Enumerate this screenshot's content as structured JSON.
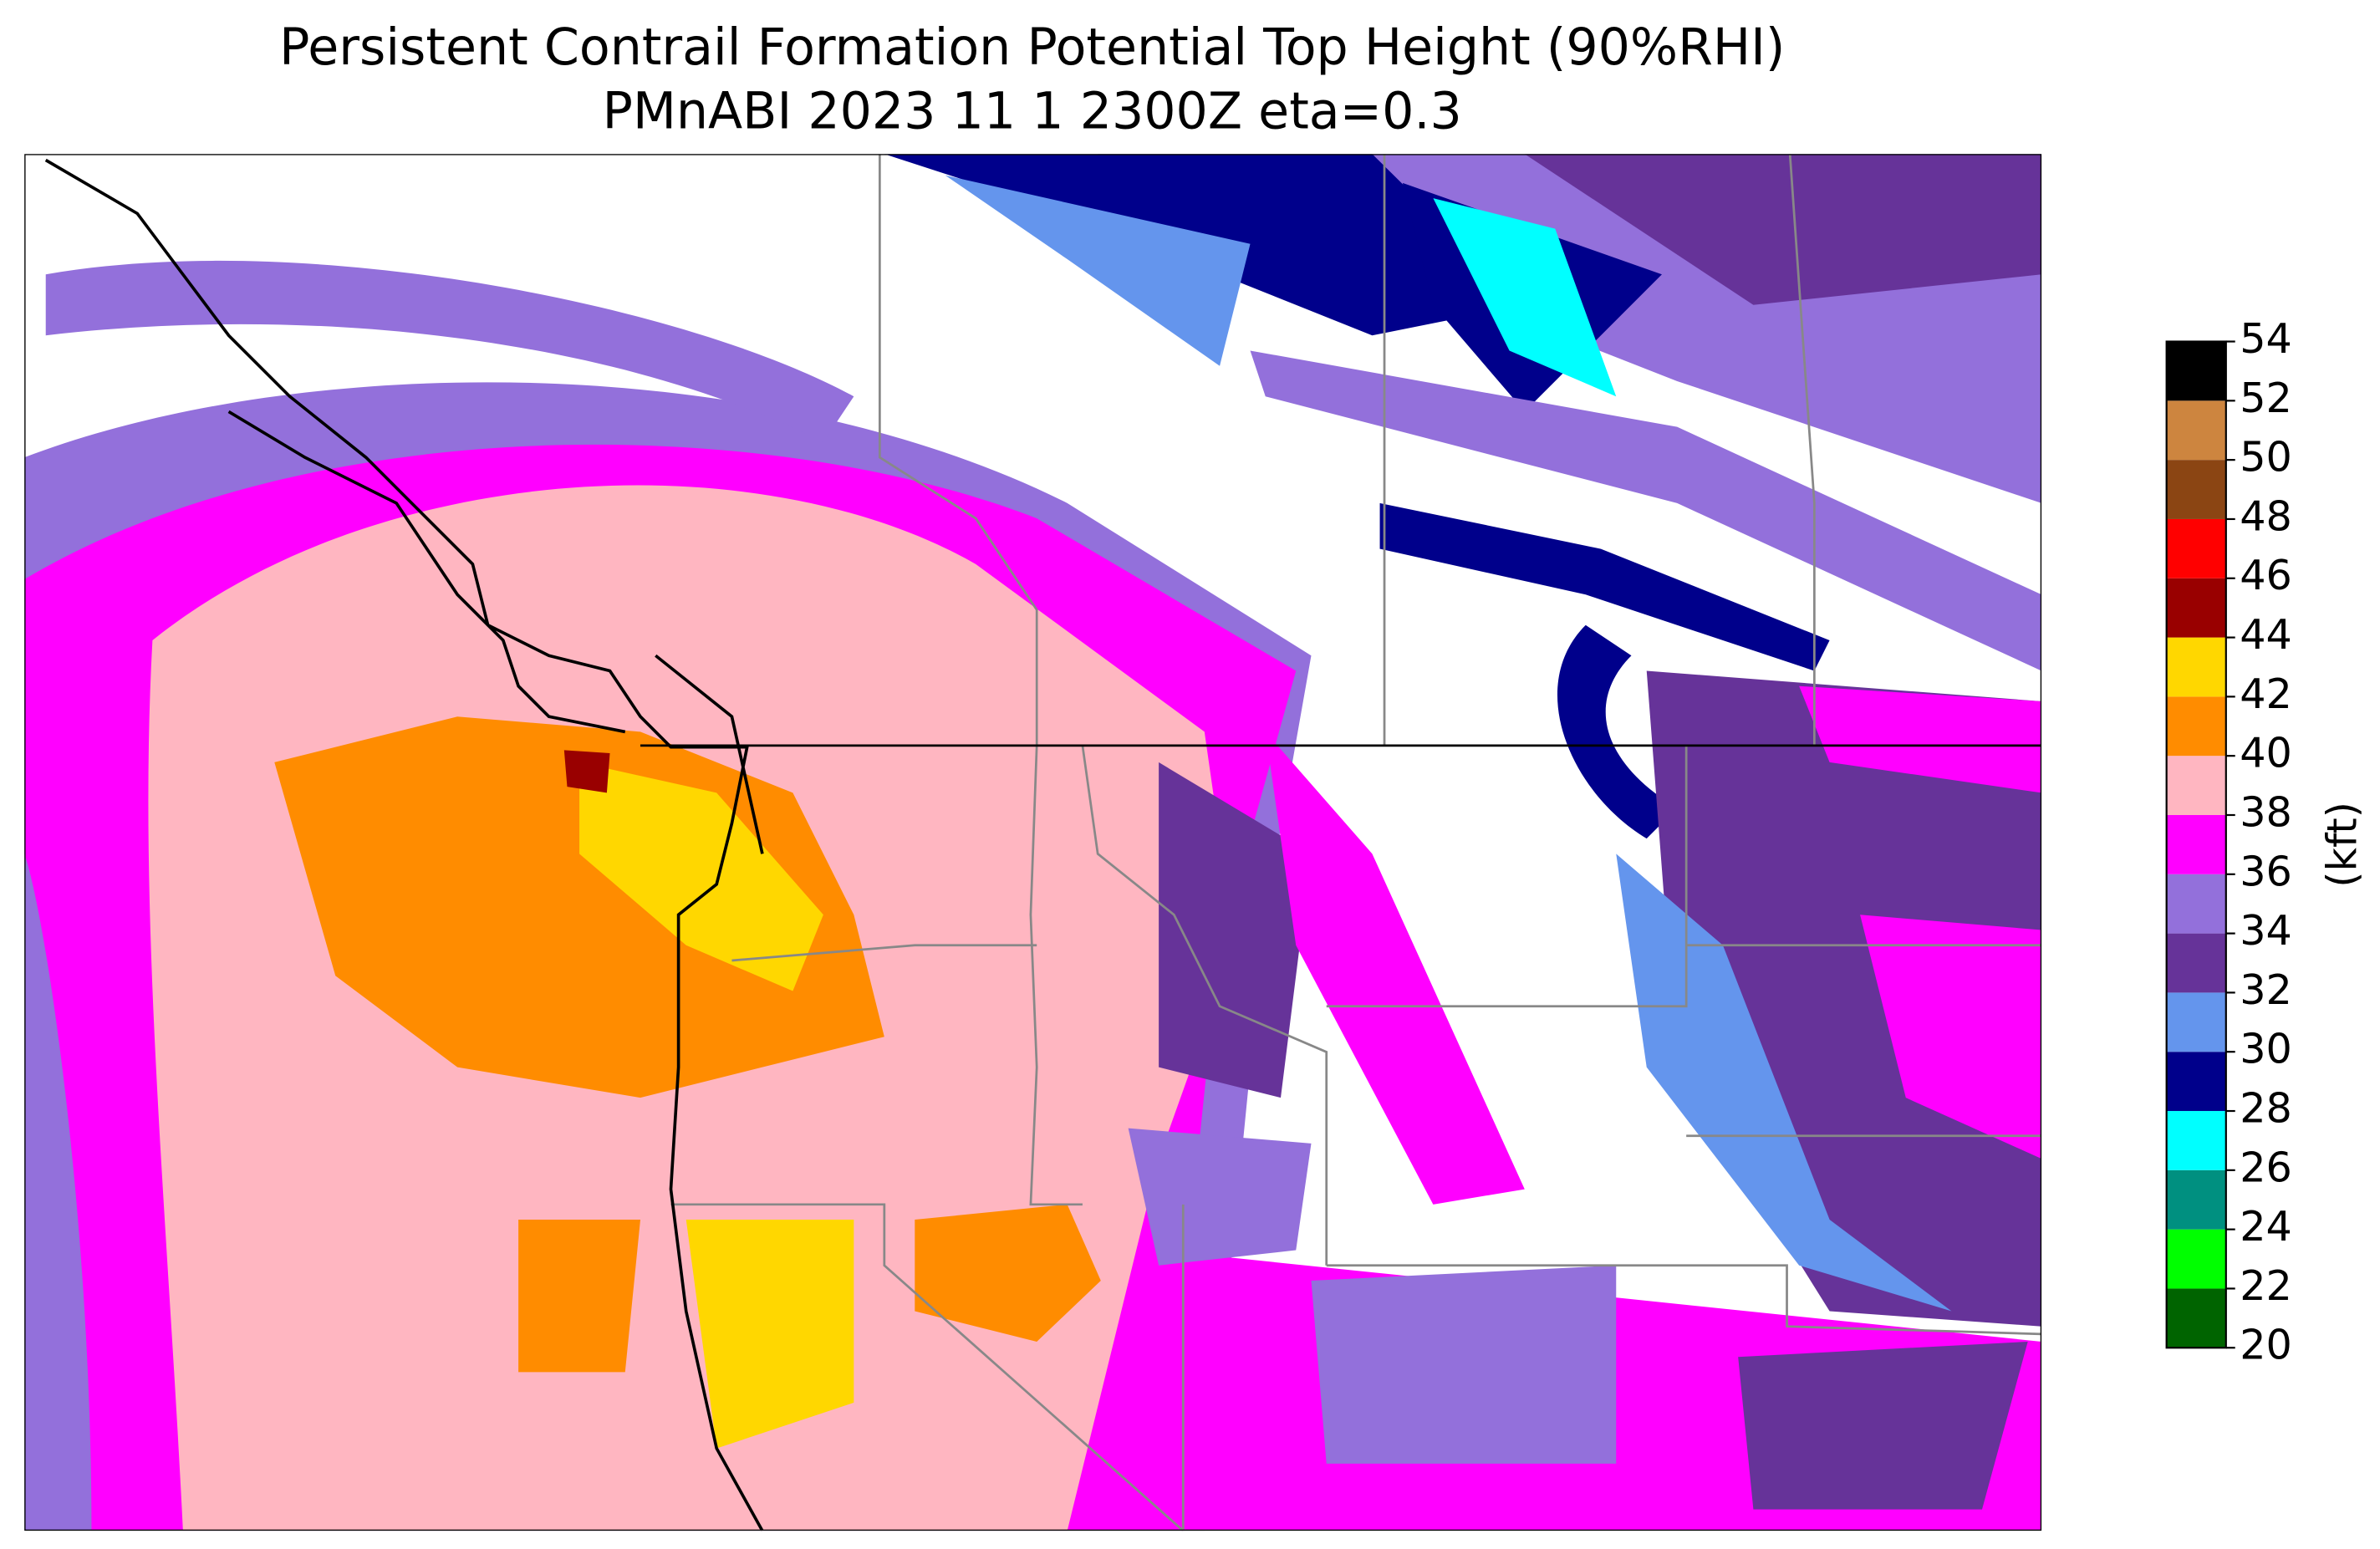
{
  "title": [
    "Persistent Contrail Formation Potential Top Height (90%RHI)",
    "PMnABI  2023 11  1   2300Z  eta=0.3"
  ],
  "colorbar": {
    "label": "(kft)",
    "ticks": [
      20,
      22,
      24,
      26,
      28,
      30,
      32,
      34,
      36,
      38,
      40,
      42,
      44,
      46,
      48,
      50,
      52,
      54
    ],
    "colors": [
      "#006400",
      "#00ff00",
      "#009080",
      "#00ffff",
      "#00008b",
      "#6495ed",
      "#663399",
      "#9370db",
      "#ff00ff",
      "#ffb6c1",
      "#ff8c00",
      "#ffd700",
      "#990000",
      "#ff0000",
      "#8b4513",
      "#cd853f",
      "#000000"
    ]
  }
}
